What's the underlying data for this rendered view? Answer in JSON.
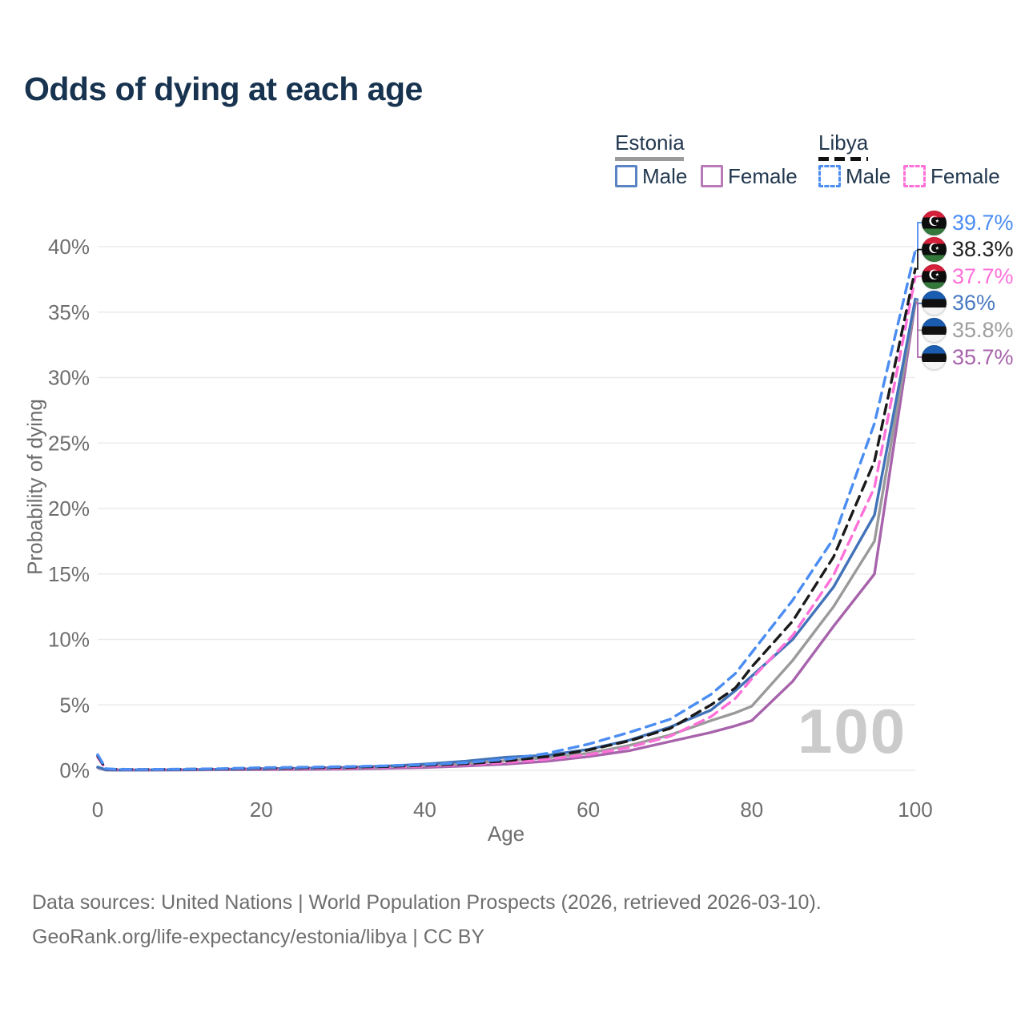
{
  "title": "Odds of dying at each age",
  "watermark_age": "100",
  "legend": {
    "groups": [
      {
        "country": "Estonia",
        "line_style": "solid",
        "underline_color": "#9b9b9b",
        "items": [
          {
            "label": "Male",
            "color": "#5b84c4"
          },
          {
            "label": "Female",
            "color": "#b87bb8"
          }
        ]
      },
      {
        "country": "Libya",
        "line_style": "dashed",
        "underline_color": "#111111",
        "items": [
          {
            "label": "Male",
            "color": "#4b8df2"
          },
          {
            "label": "Female",
            "color": "#ff70d8"
          }
        ]
      }
    ]
  },
  "chart_data": {
    "type": "line",
    "title": "Odds of dying at each age",
    "xlabel": "Age",
    "ylabel": "Probability of dying",
    "xlim": [
      0,
      100
    ],
    "ylim": [
      0,
      42
    ],
    "x_ticks": [
      0,
      20,
      40,
      60,
      80,
      100
    ],
    "y_ticks": [
      0,
      5,
      10,
      15,
      20,
      25,
      30,
      35,
      40
    ],
    "y_tick_suffix": "%",
    "grid": "horizontal",
    "legend_position": "top-right",
    "x": [
      0,
      1,
      2,
      5,
      10,
      15,
      20,
      25,
      30,
      35,
      40,
      45,
      50,
      55,
      60,
      65,
      70,
      75,
      78,
      80,
      85,
      90,
      95,
      100
    ],
    "series": [
      {
        "name": "Libya Male",
        "country": "Libya",
        "sex": "Male",
        "color": "#4b8df2",
        "dash": true,
        "end_label": "39.7%",
        "values": [
          1.2,
          0.12,
          0.09,
          0.07,
          0.09,
          0.13,
          0.2,
          0.24,
          0.28,
          0.34,
          0.44,
          0.58,
          0.85,
          1.3,
          2.0,
          2.9,
          3.9,
          5.8,
          7.4,
          9.0,
          13.0,
          17.7,
          26.5,
          39.7
        ]
      },
      {
        "name": "Libya Both sexes",
        "country": "Libya",
        "sex": "Both",
        "color": "#1a1a1a",
        "dash": true,
        "end_label": "38.3%",
        "values": [
          1.1,
          0.1,
          0.08,
          0.06,
          0.08,
          0.11,
          0.16,
          0.19,
          0.23,
          0.29,
          0.38,
          0.5,
          0.72,
          1.05,
          1.55,
          2.25,
          3.2,
          5.0,
          6.3,
          7.9,
          11.4,
          16.3,
          23.6,
          38.3
        ]
      },
      {
        "name": "Libya Female",
        "country": "Libya",
        "sex": "Female",
        "color": "#ff70d8",
        "dash": true,
        "end_label": "37.7%",
        "values": [
          1.0,
          0.09,
          0.07,
          0.05,
          0.07,
          0.09,
          0.12,
          0.14,
          0.18,
          0.24,
          0.32,
          0.43,
          0.6,
          0.85,
          1.2,
          1.75,
          2.6,
          4.1,
          5.5,
          7.0,
          10.3,
          14.9,
          21.6,
          37.7
        ]
      },
      {
        "name": "Estonia Male",
        "country": "Estonia",
        "sex": "Male",
        "color": "#4273b8",
        "dash": false,
        "end_label": "36%",
        "values": [
          0.25,
          0.04,
          0.03,
          0.03,
          0.04,
          0.08,
          0.12,
          0.16,
          0.22,
          0.32,
          0.48,
          0.7,
          1.0,
          1.15,
          1.6,
          2.3,
          3.3,
          4.6,
          6.1,
          7.2,
          10.0,
          14.0,
          19.5,
          36.0
        ]
      },
      {
        "name": "Estonia Both sexes",
        "country": "Estonia",
        "sex": "Both",
        "color": "#9a9a9a",
        "dash": false,
        "end_label": "35.8%",
        "values": [
          0.22,
          0.03,
          0.03,
          0.03,
          0.04,
          0.06,
          0.09,
          0.12,
          0.17,
          0.25,
          0.36,
          0.52,
          0.75,
          0.95,
          1.3,
          1.9,
          2.7,
          3.8,
          4.4,
          4.9,
          8.4,
          12.5,
          17.5,
          35.8
        ]
      },
      {
        "name": "Estonia Female",
        "country": "Estonia",
        "sex": "Female",
        "color": "#a763ab",
        "dash": false,
        "end_label": "35.7%",
        "values": [
          0.2,
          0.02,
          0.02,
          0.02,
          0.03,
          0.04,
          0.05,
          0.07,
          0.1,
          0.15,
          0.22,
          0.33,
          0.48,
          0.7,
          1.05,
          1.5,
          2.2,
          2.9,
          3.4,
          3.8,
          6.8,
          11.0,
          15.0,
          35.7
        ]
      }
    ]
  },
  "end_labels": [
    {
      "value": "39.7%",
      "flag": "libya",
      "color": "#4b8df2"
    },
    {
      "value": "38.3%",
      "flag": "libya",
      "color": "#1f1f1f"
    },
    {
      "value": "37.7%",
      "flag": "libya",
      "color": "#ff70d8"
    },
    {
      "value": "36%",
      "flag": "estonia",
      "color": "#4a7ac2"
    },
    {
      "value": "35.8%",
      "flag": "estonia",
      "color": "#9e9e9e"
    },
    {
      "value": "35.7%",
      "flag": "estonia",
      "color": "#a763ab"
    }
  ],
  "footer": {
    "line1": "Data sources: United Nations | World Population Prospects (2026, retrieved 2026-03-10).",
    "line2": "GeoRank.org/life-expectancy/estonia/libya | CC BY"
  }
}
